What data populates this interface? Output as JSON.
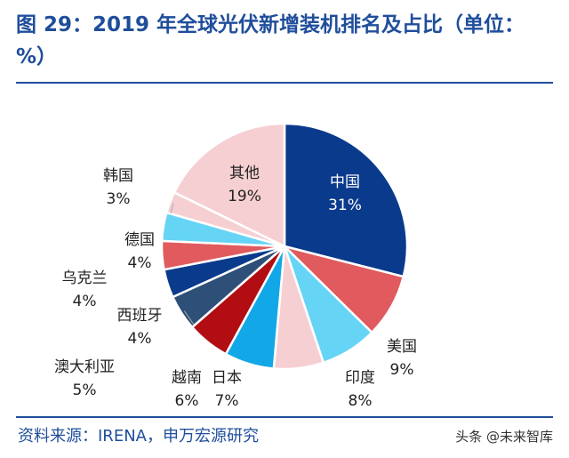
{
  "title": "图 29：2019 年全球光伏新增装机排名及占比（单位：%）",
  "source": "资料来源：IRENA，申万宏源研究",
  "watermark": "头条 @未来智库",
  "chart_data": {
    "type": "pie",
    "unit": "%",
    "slices": [
      {
        "name": "中国",
        "value": 31,
        "label": "31%",
        "color": "#0a3a8c"
      },
      {
        "name": "美国",
        "value": 9,
        "label": "9%",
        "color": "#e05a5e"
      },
      {
        "name": "印度",
        "value": 8,
        "label": "8%",
        "color": "#66d4f5"
      },
      {
        "name": "",
        "value": 7,
        "label": "",
        "color": "#f6cfd2"
      },
      {
        "name": "日本",
        "value": 7,
        "label": "7%",
        "color": "#12a7e6"
      },
      {
        "name": "越南",
        "value": 6,
        "label": "6%",
        "color": "#b10d12"
      },
      {
        "name": "澳大利亚",
        "value": 5,
        "label": "5%",
        "color": "#2e4f78"
      },
      {
        "name": "西班牙",
        "value": 4,
        "label": "4%",
        "color": "#0a3a8c"
      },
      {
        "name": "乌克兰",
        "value": 4,
        "label": "4%",
        "color": "#e05a5e"
      },
      {
        "name": "德国",
        "value": 4,
        "label": "4%",
        "color": "#66d4f5"
      },
      {
        "name": "韩国",
        "value": 3,
        "label": "3%",
        "color": "#f6cfd2"
      },
      {
        "name": "其他",
        "value": 19,
        "label": "19%",
        "color": "#f6cfd2"
      }
    ]
  }
}
